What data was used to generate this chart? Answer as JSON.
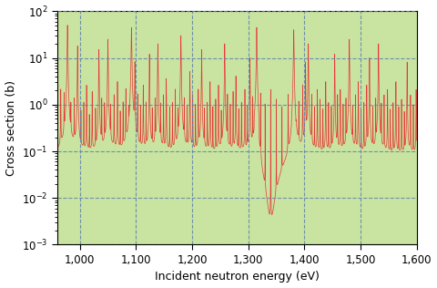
{
  "xlabel": "Incident neutron energy (eV)",
  "ylabel": "Cross section (b)",
  "xlim": [
    960,
    1600
  ],
  "ylim_log_min": -3,
  "ylim_log_max": 2,
  "background_color": "#c8e4a0",
  "line_color": "#e83030",
  "grid_color": "#6080b0",
  "baseline": 0.09,
  "dashed_x_positions": [
    1000,
    1100,
    1200,
    1300,
    1400,
    1500
  ],
  "xticks": [
    1000,
    1100,
    1200,
    1300,
    1400,
    1500,
    1600
  ],
  "xtick_labels": [
    "1,000",
    "1,100",
    "1,200",
    "1,300",
    "1,400",
    "1,500",
    "1,600"
  ],
  "n_points": 50000,
  "resonance_energies": [
    966,
    972,
    978,
    984,
    990,
    996,
    1002,
    1007,
    1012,
    1017,
    1022,
    1028,
    1034,
    1039,
    1044,
    1050,
    1055,
    1061,
    1067,
    1072,
    1077,
    1082,
    1087,
    1092,
    1098,
    1103,
    1108,
    1113,
    1118,
    1124,
    1129,
    1134,
    1139,
    1144,
    1149,
    1154,
    1160,
    1165,
    1170,
    1175,
    1180,
    1186,
    1191,
    1196,
    1201,
    1206,
    1211,
    1217,
    1222,
    1227,
    1232,
    1237,
    1242,
    1247,
    1252,
    1258,
    1263,
    1268,
    1273,
    1278,
    1283,
    1288,
    1294,
    1298,
    1303,
    1308,
    1315,
    1322,
    1330,
    1340,
    1350,
    1360,
    1371,
    1381,
    1390,
    1397,
    1402,
    1407,
    1413,
    1418,
    1423,
    1428,
    1433,
    1438,
    1443,
    1448,
    1454,
    1459,
    1464,
    1469,
    1474,
    1480,
    1486,
    1491,
    1496,
    1501,
    1506,
    1511,
    1516,
    1522,
    1527,
    1532,
    1537,
    1542,
    1548,
    1553,
    1558,
    1563,
    1568,
    1573,
    1578,
    1583,
    1589,
    1594,
    1599
  ],
  "resonance_peaks": [
    2.0,
    1.5,
    50,
    0.8,
    1.2,
    18,
    0.6,
    1.0,
    2.5,
    0.5,
    1.8,
    0.7,
    15,
    1.2,
    0.9,
    25,
    0.8,
    1.5,
    3.0,
    0.6,
    1.0,
    2.0,
    0.5,
    45,
    8,
    1.5,
    0.8,
    2.5,
    1.0,
    12,
    0.7,
    1.2,
    20,
    0.9,
    1.5,
    3.5,
    0.8,
    1.0,
    2.0,
    0.6,
    30,
    1.2,
    0.8,
    5.0,
    1.5,
    0.9,
    2.0,
    15,
    0.7,
    1.0,
    3.0,
    0.8,
    1.2,
    2.5,
    0.6,
    20,
    1.5,
    0.9,
    1.8,
    4.0,
    0.7,
    1.0,
    2.0,
    0.8,
    10,
    1.2,
    45,
    1.5,
    0.9,
    2.0,
    1.2,
    0.8,
    1.5,
    40,
    1.0,
    2.5,
    8,
    20,
    1.5,
    0.8,
    2.0,
    1.2,
    0.7,
    3.0,
    1.0,
    0.8,
    12,
    1.5,
    2.0,
    0.9,
    1.2,
    25,
    0.8,
    1.5,
    3.0,
    0.7,
    1.0,
    2.5,
    10,
    0.8,
    1.2,
    20,
    0.9,
    1.5,
    2.0,
    0.7,
    1.0,
    3.0,
    0.8,
    1.2,
    0.6,
    8,
    1.5,
    0.9,
    2.0
  ],
  "resonance_widths": [
    0.4,
    0.3,
    0.8,
    0.3,
    0.3,
    0.6,
    0.25,
    0.3,
    0.4,
    0.25,
    0.35,
    0.25,
    0.6,
    0.3,
    0.3,
    0.7,
    0.25,
    0.35,
    0.45,
    0.25,
    0.3,
    0.4,
    0.25,
    0.9,
    0.5,
    0.35,
    0.25,
    0.4,
    0.3,
    0.55,
    0.25,
    0.3,
    0.65,
    0.3,
    0.35,
    0.45,
    0.25,
    0.3,
    0.4,
    0.25,
    0.75,
    0.3,
    0.25,
    0.5,
    0.35,
    0.3,
    0.4,
    0.6,
    0.25,
    0.3,
    0.45,
    0.25,
    0.3,
    0.4,
    0.25,
    0.65,
    0.35,
    0.3,
    0.35,
    0.5,
    0.25,
    0.3,
    0.4,
    0.25,
    0.55,
    0.3,
    0.85,
    0.35,
    0.3,
    0.4,
    0.3,
    0.25,
    0.35,
    0.8,
    0.3,
    0.4,
    0.5,
    0.65,
    0.35,
    0.25,
    0.4,
    0.3,
    0.25,
    0.45,
    0.3,
    0.25,
    0.55,
    0.35,
    0.4,
    0.3,
    0.3,
    0.7,
    0.25,
    0.35,
    0.45,
    0.25,
    0.3,
    0.4,
    0.55,
    0.25,
    0.3,
    0.65,
    0.3,
    0.35,
    0.4,
    0.25,
    0.3,
    0.45,
    0.25,
    0.3,
    0.25,
    0.5,
    0.35,
    0.3,
    0.4
  ]
}
